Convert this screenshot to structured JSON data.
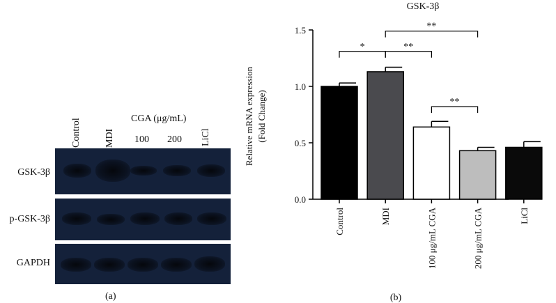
{
  "figure_a": {
    "lane_labels": [
      "Control",
      "MDI"
    ],
    "cga_group_label": "CGA (μg/mL)",
    "cga_doses": [
      "100",
      "200",
      "LiCl"
    ],
    "rows": [
      {
        "label": "GSK-3β"
      },
      {
        "label": "p-GSK-3β"
      },
      {
        "label": "GAPDH"
      }
    ],
    "caption": "(a)"
  },
  "chart_data": {
    "type": "bar",
    "title": "GSK-3β",
    "xlabel": "",
    "ylabel": "Relative mRNA expression",
    "ylabel2": "(Fold Change)",
    "categories": [
      "Control",
      "MDI",
      "100 μg/mL CGA",
      "200 μg/mL CGA",
      "LiCl"
    ],
    "values": [
      1.0,
      1.13,
      0.64,
      0.43,
      0.46
    ],
    "errors": [
      0.03,
      0.04,
      0.05,
      0.03,
      0.05
    ],
    "bar_colors": [
      "#000000",
      "#4a4a4e",
      "#ffffff",
      "#bdbdbd",
      "#0a0a0a"
    ],
    "ylim": [
      0,
      1.5
    ],
    "yticks": [
      "0.0",
      "0.5",
      "1.0",
      "1.5"
    ],
    "significance": [
      {
        "from": 0,
        "to": 1,
        "label": "*",
        "y": 1.31
      },
      {
        "from": 1,
        "to": 2,
        "label": "**",
        "y": 1.31
      },
      {
        "from": 1,
        "to": 3,
        "label": "**",
        "y": 1.49
      },
      {
        "from": 2,
        "to": 3,
        "label": "**",
        "y": 0.82
      }
    ],
    "caption": "(b)"
  }
}
